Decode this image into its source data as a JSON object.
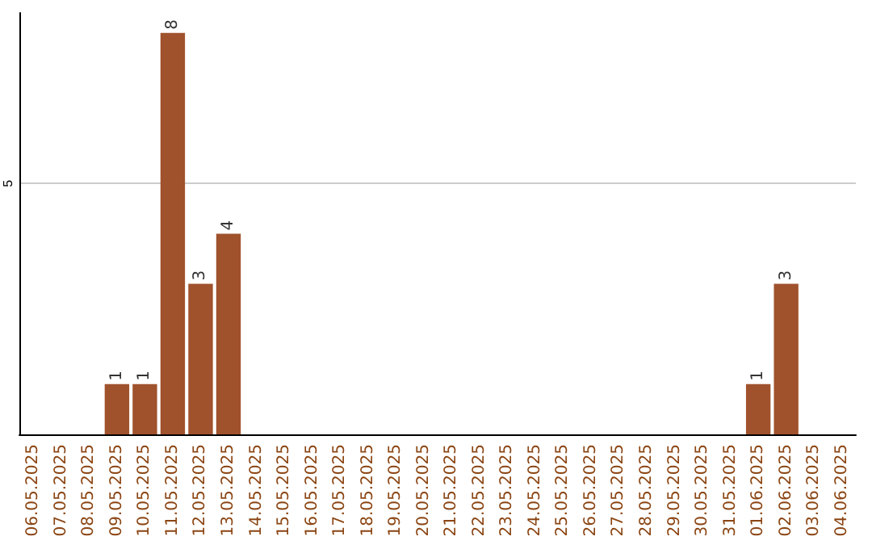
{
  "chart_data": {
    "type": "bar",
    "categories": [
      "06.05.2025",
      "07.05.2025",
      "08.05.2025",
      "09.05.2025",
      "10.05.2025",
      "11.05.2025",
      "12.05.2025",
      "13.05.2025",
      "14.05.2025",
      "15.05.2025",
      "16.05.2025",
      "17.05.2025",
      "18.05.2025",
      "19.05.2025",
      "20.05.2025",
      "21.05.2025",
      "22.05.2025",
      "23.05.2025",
      "24.05.2025",
      "25.05.2025",
      "26.05.2025",
      "27.05.2025",
      "28.05.2025",
      "29.05.2025",
      "30.05.2025",
      "31.05.2025",
      "01.06.2025",
      "02.06.2025",
      "03.06.2025",
      "04.06.2025"
    ],
    "values": [
      0,
      0,
      0,
      1,
      1,
      8,
      3,
      4,
      0,
      0,
      0,
      0,
      0,
      0,
      0,
      0,
      0,
      0,
      0,
      0,
      0,
      0,
      0,
      0,
      0,
      0,
      1,
      3,
      0,
      0
    ],
    "value_labels": [
      null,
      null,
      null,
      "1",
      "1",
      "8",
      "3",
      "4",
      null,
      null,
      null,
      null,
      null,
      null,
      null,
      null,
      null,
      null,
      null,
      null,
      null,
      null,
      null,
      null,
      null,
      null,
      "1",
      "3",
      null,
      null
    ],
    "color": "#a0522d",
    "ylim": [
      0,
      8.4
    ],
    "yticks": [
      5
    ],
    "grid": "y"
  }
}
